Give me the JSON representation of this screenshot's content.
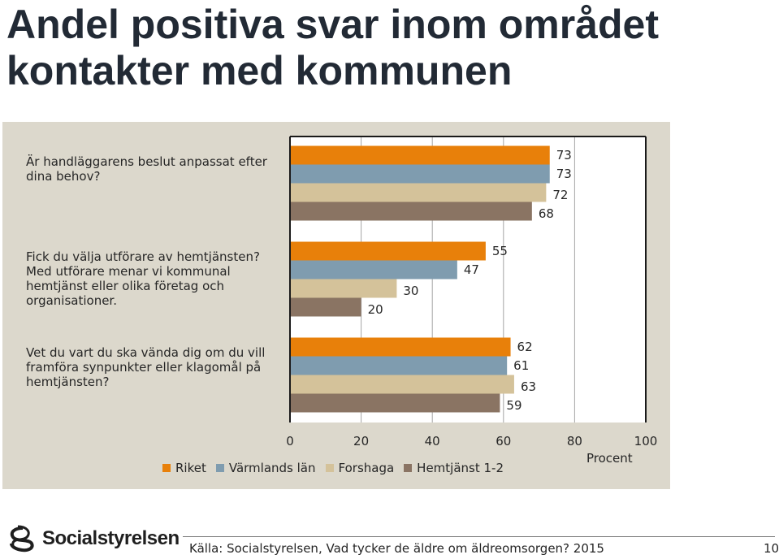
{
  "slide": {
    "title": "Andel positiva svar inom området kontakter med kommunen",
    "source": "Källa: Socialstyrelsen, Vad tycker de äldre om äldreomsorgen? 2015",
    "page_number": "10",
    "logo_text": "Socialstyrelsen"
  },
  "chart_data": {
    "type": "bar",
    "orientation": "horizontal",
    "categories": [
      "Är handläggarens beslut anpassat efter dina behov?",
      "Fick du välja utförare av hemtjänsten? Med utförare menar vi kommunal hemtjänst eller olika företag och organisationer.",
      "Vet du vart du ska vända dig om du vill framföra synpunkter eller klagomål på hemtjänsten?"
    ],
    "series": [
      {
        "name": "Riket",
        "color": "#e8800a",
        "values": [
          73,
          55,
          62
        ]
      },
      {
        "name": "Värmlands län",
        "color": "#7f9caf",
        "values": [
          73,
          47,
          61
        ]
      },
      {
        "name": "Forshaga",
        "color": "#d4c29a",
        "values": [
          72,
          30,
          63
        ]
      },
      {
        "name": "Hemtjänst 1-2",
        "color": "#8a7463",
        "values": [
          68,
          20,
          59
        ]
      }
    ],
    "xlim": [
      0,
      100
    ],
    "xticks": [
      "0",
      "20",
      "40",
      "60",
      "80",
      "100"
    ],
    "xlabel": "Procent",
    "gridlines": true,
    "legend_position": "bottom"
  }
}
